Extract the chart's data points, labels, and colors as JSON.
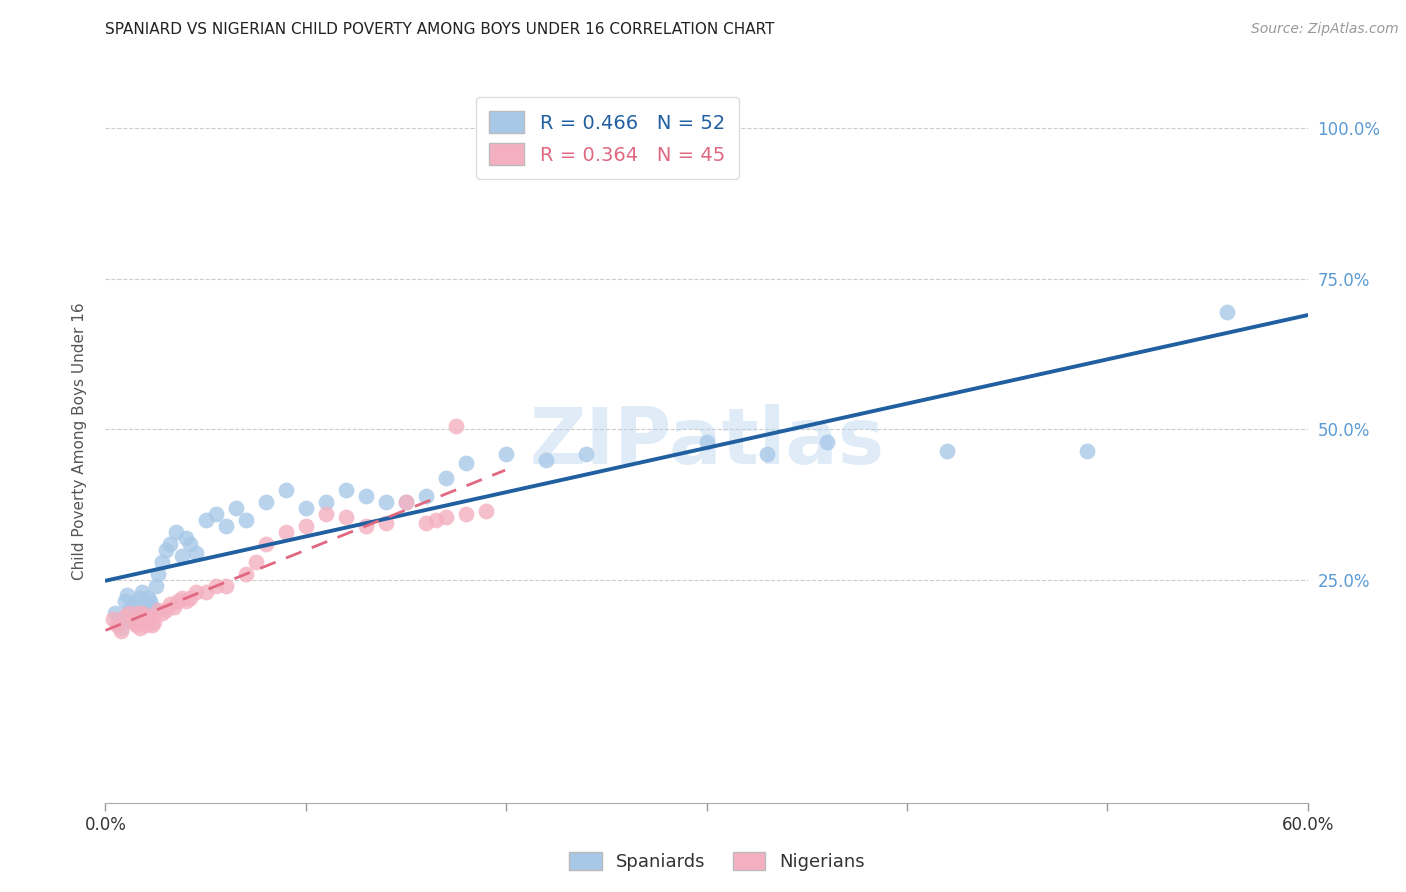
{
  "title": "SPANIARD VS NIGERIAN CHILD POVERTY AMONG BOYS UNDER 16 CORRELATION CHART",
  "source": "Source: ZipAtlas.com",
  "ylabel": "Child Poverty Among Boys Under 16",
  "ytick_labels": [
    "25.0%",
    "50.0%",
    "75.0%",
    "100.0%"
  ],
  "ytick_vals": [
    0.25,
    0.5,
    0.75,
    1.0
  ],
  "xlim": [
    0.0,
    0.6
  ],
  "ylim": [
    -0.12,
    1.08
  ],
  "spaniard_color": "#a8c8e8",
  "nigerian_color": "#f4b0c0",
  "spaniard_line_color": "#2060a0",
  "nigerian_line_color": "#e06880",
  "r_spaniard": 0.466,
  "n_spaniard": 52,
  "r_nigerian": 0.364,
  "n_nigerian": 45,
  "watermark": "ZIPatlas",
  "spaniard_x": [
    0.005,
    0.007,
    0.008,
    0.01,
    0.011,
    0.012,
    0.013,
    0.014,
    0.015,
    0.016,
    0.017,
    0.018,
    0.019,
    0.02,
    0.021,
    0.022,
    0.023,
    0.025,
    0.026,
    0.028,
    0.03,
    0.032,
    0.035,
    0.038,
    0.04,
    0.042,
    0.045,
    0.05,
    0.055,
    0.06,
    0.065,
    0.07,
    0.08,
    0.09,
    0.1,
    0.11,
    0.12,
    0.13,
    0.14,
    0.15,
    0.16,
    0.17,
    0.18,
    0.2,
    0.22,
    0.24,
    0.3,
    0.33,
    0.36,
    0.42,
    0.49,
    0.56
  ],
  "spaniard_y": [
    0.195,
    0.185,
    0.17,
    0.215,
    0.225,
    0.2,
    0.185,
    0.21,
    0.205,
    0.195,
    0.22,
    0.23,
    0.2,
    0.21,
    0.22,
    0.215,
    0.205,
    0.24,
    0.26,
    0.28,
    0.3,
    0.31,
    0.33,
    0.29,
    0.32,
    0.31,
    0.295,
    0.35,
    0.36,
    0.34,
    0.37,
    0.35,
    0.38,
    0.4,
    0.37,
    0.38,
    0.4,
    0.39,
    0.38,
    0.38,
    0.39,
    0.42,
    0.445,
    0.46,
    0.45,
    0.46,
    0.48,
    0.46,
    0.48,
    0.465,
    0.465,
    0.695
  ],
  "nigerian_x": [
    0.004,
    0.006,
    0.008,
    0.01,
    0.012,
    0.014,
    0.015,
    0.016,
    0.017,
    0.018,
    0.019,
    0.02,
    0.021,
    0.022,
    0.023,
    0.024,
    0.026,
    0.028,
    0.03,
    0.032,
    0.034,
    0.036,
    0.038,
    0.04,
    0.042,
    0.045,
    0.05,
    0.055,
    0.06,
    0.07,
    0.075,
    0.08,
    0.09,
    0.1,
    0.11,
    0.12,
    0.13,
    0.14,
    0.15,
    0.16,
    0.165,
    0.17,
    0.175,
    0.18,
    0.19
  ],
  "nigerian_y": [
    0.185,
    0.175,
    0.165,
    0.19,
    0.195,
    0.18,
    0.175,
    0.195,
    0.17,
    0.195,
    0.185,
    0.175,
    0.185,
    0.19,
    0.175,
    0.18,
    0.2,
    0.195,
    0.2,
    0.21,
    0.205,
    0.215,
    0.22,
    0.215,
    0.22,
    0.23,
    0.23,
    0.24,
    0.24,
    0.26,
    0.28,
    0.31,
    0.33,
    0.34,
    0.36,
    0.355,
    0.34,
    0.345,
    0.38,
    0.345,
    0.35,
    0.355,
    0.505,
    0.36,
    0.365
  ],
  "background_color": "#ffffff",
  "grid_color": "#cccccc",
  "title_color": "#222222",
  "axis_label_color": "#555555",
  "right_ytick_color": "#5b9bd5",
  "legend_label_color_1": "#2060a0",
  "legend_label_color_2": "#e06880"
}
